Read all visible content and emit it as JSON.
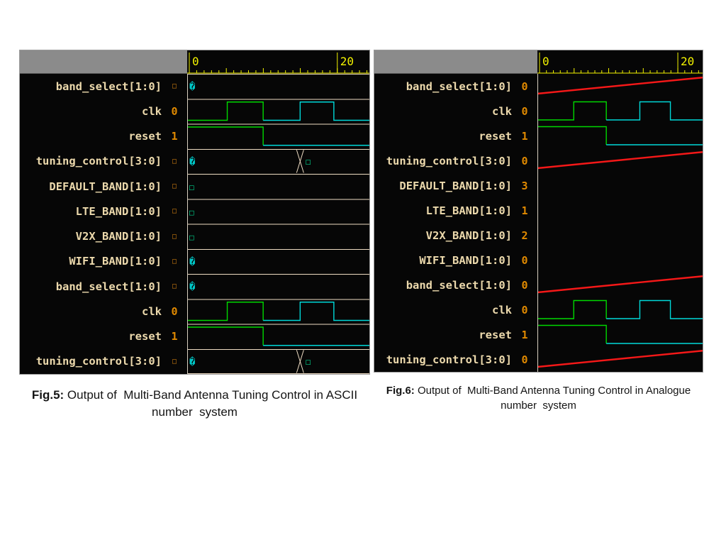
{
  "colors": {
    "panel_bg": "#060606",
    "header_gray": "#8b8b8b",
    "name_text": "#ecd9ac",
    "value_text": "#e08900",
    "ruler_yellow": "#f2f200",
    "bus_rail": "#eedcc2",
    "clock_green": "#00d800",
    "clock_cyan": "#00d8d8",
    "analog_red": "#f51818",
    "glyph_cyan": "#00c8c8",
    "glyph_green": "#00cc88",
    "divider": "#d8cfc0"
  },
  "wave_defaults": {
    "clock_edges": [
      0.22,
      0.417,
      0.62,
      0.805
    ],
    "reset_edge": 0.417
  },
  "figures": [
    {
      "ruler": {
        "start": "0",
        "end": "20"
      },
      "signals": [
        {
          "name": "band_select[1:0]",
          "value": "□",
          "wave": {
            "type": "bus",
            "glyph": "�"
          }
        },
        {
          "name": "clk",
          "value": "0",
          "wave": {
            "type": "clock"
          }
        },
        {
          "name": "reset",
          "value": "1",
          "wave": {
            "type": "step"
          }
        },
        {
          "name": "tuning_control[3:0]",
          "value": "□",
          "wave": {
            "type": "bus",
            "glyph": "�",
            "transition": 0.62,
            "glyph2": "□"
          }
        },
        {
          "name": "DEFAULT_BAND[1:0]",
          "value": "□",
          "wave": {
            "type": "bus",
            "glyph": "□"
          }
        },
        {
          "name": "LTE_BAND[1:0]",
          "value": "□",
          "wave": {
            "type": "bus",
            "glyph": "□"
          }
        },
        {
          "name": "V2X_BAND[1:0]",
          "value": "□",
          "wave": {
            "type": "bus",
            "glyph": "□"
          }
        },
        {
          "name": "WIFI_BAND[1:0]",
          "value": "□",
          "wave": {
            "type": "bus",
            "glyph": "�"
          }
        },
        {
          "name": "band_select[1:0]",
          "value": "□",
          "wave": {
            "type": "bus",
            "glyph": "�"
          }
        },
        {
          "name": "clk",
          "value": "0",
          "wave": {
            "type": "clock"
          }
        },
        {
          "name": "reset",
          "value": "1",
          "wave": {
            "type": "step"
          }
        },
        {
          "name": "tuning_control[3:0]",
          "value": "□",
          "wave": {
            "type": "bus",
            "glyph": "�",
            "transition": 0.62,
            "glyph2": "□"
          }
        }
      ],
      "caption": {
        "label": "Fig.5:",
        "line1": " Output of  Multi-Band Antenna Tuning Control in ASCII",
        "line2": "number  system"
      }
    },
    {
      "ruler": {
        "start": "0",
        "end": "20"
      },
      "signals": [
        {
          "name": "band_select[1:0]",
          "value": "0",
          "wave": {
            "type": "ramp"
          }
        },
        {
          "name": "clk",
          "value": "0",
          "wave": {
            "type": "clock"
          }
        },
        {
          "name": "reset",
          "value": "1",
          "wave": {
            "type": "step"
          }
        },
        {
          "name": "tuning_control[3:0]",
          "value": "0",
          "wave": {
            "type": "ramp"
          }
        },
        {
          "name": "DEFAULT_BAND[1:0]",
          "value": "3",
          "wave": {
            "type": "empty"
          }
        },
        {
          "name": "LTE_BAND[1:0]",
          "value": "1",
          "wave": {
            "type": "empty"
          }
        },
        {
          "name": "V2X_BAND[1:0]",
          "value": "2",
          "wave": {
            "type": "empty"
          }
        },
        {
          "name": "WIFI_BAND[1:0]",
          "value": "0",
          "wave": {
            "type": "empty"
          }
        },
        {
          "name": "band_select[1:0]",
          "value": "0",
          "wave": {
            "type": "ramp"
          }
        },
        {
          "name": "clk",
          "value": "0",
          "wave": {
            "type": "clock"
          }
        },
        {
          "name": "reset",
          "value": "1",
          "wave": {
            "type": "step"
          }
        },
        {
          "name": "tuning_control[3:0]",
          "value": "0",
          "wave": {
            "type": "ramp"
          }
        }
      ],
      "caption": {
        "label": "Fig.6:",
        "line1": " Output of  Multi-Band Antenna Tuning Control in Analogue",
        "line2": "number  system"
      }
    }
  ]
}
